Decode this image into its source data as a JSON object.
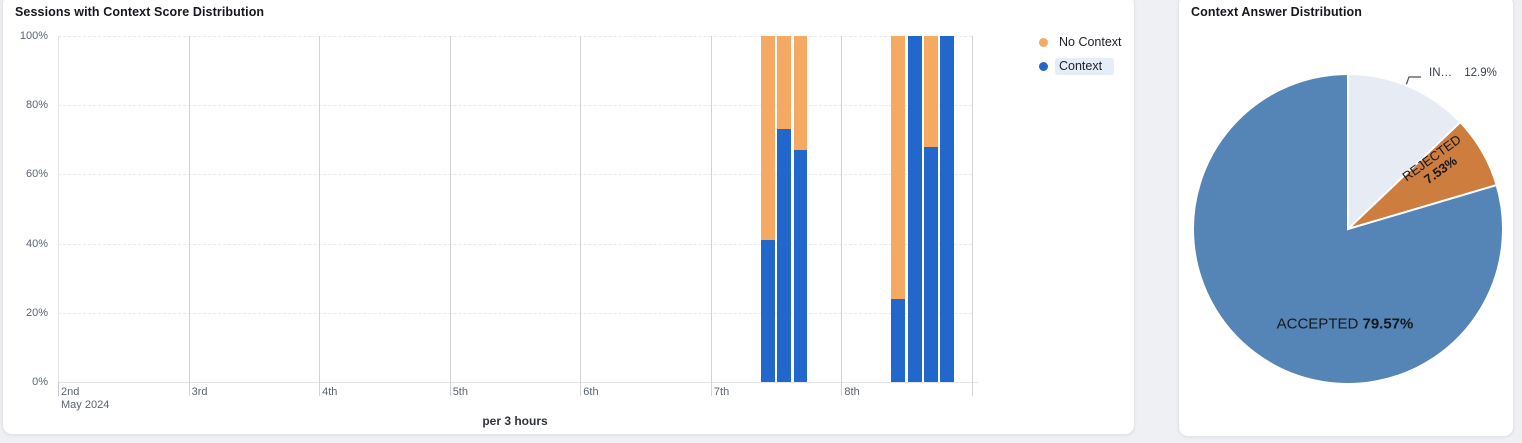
{
  "left_card": {
    "legend": [
      {
        "label": "No Context",
        "color": "#f5a963",
        "highlighted": false
      },
      {
        "label": "Context",
        "color": "#2267cb",
        "highlighted": true
      }
    ]
  },
  "chart_data": [
    {
      "type": "bar",
      "stacked": true,
      "title": "Sessions with Context Score Distribution",
      "xlabel": "per 3 hours",
      "ylim": [
        0,
        100
      ],
      "ytick_labels": [
        "0%",
        "20%",
        "40%",
        "60%",
        "80%",
        "100%"
      ],
      "grid": true,
      "legend_position": "top-right",
      "x_axis": {
        "unit": "3 hours",
        "day_labels": [
          "2nd",
          "3rd",
          "4th",
          "5th",
          "6th",
          "7th",
          "8th"
        ],
        "month_label": "May 2024",
        "days_shown": 7,
        "slots_per_day": 8,
        "total_slots": 56
      },
      "series_names": [
        "Context",
        "No Context"
      ],
      "colors": {
        "context": "#2267cb",
        "no_context": "#f5a963"
      },
      "bars": [
        {
          "slot_index": 43,
          "time": "May 7 09:00",
          "context_pct": 41,
          "no_context_pct": 59
        },
        {
          "slot_index": 44,
          "time": "May 7 12:00",
          "context_pct": 73,
          "no_context_pct": 27
        },
        {
          "slot_index": 45,
          "time": "May 7 15:00",
          "context_pct": 67,
          "no_context_pct": 33
        },
        {
          "slot_index": 51,
          "time": "May 8 09:00",
          "context_pct": 24,
          "no_context_pct": 76
        },
        {
          "slot_index": 52,
          "time": "May 8 12:00",
          "context_pct": 100,
          "no_context_pct": 0
        },
        {
          "slot_index": 53,
          "time": "May 8 15:00",
          "context_pct": 68,
          "no_context_pct": 32
        },
        {
          "slot_index": 54,
          "time": "May 8 18:00",
          "context_pct": 100,
          "no_context_pct": 0
        }
      ]
    },
    {
      "type": "pie",
      "title": "Context Answer Distribution",
      "start_angle_deg": 0,
      "direction": "clockwise",
      "slices": [
        {
          "label": "IN…",
          "value": 12.9,
          "pct_text": "12.9%",
          "color": "#e7ebf3"
        },
        {
          "label": "REJECTED",
          "value": 7.53,
          "pct_text": "7.53%",
          "color": "#cd7d3e"
        },
        {
          "label": "ACCEPTED",
          "value": 79.57,
          "pct_text": "79.57%",
          "color": "#5584b7"
        }
      ]
    }
  ]
}
